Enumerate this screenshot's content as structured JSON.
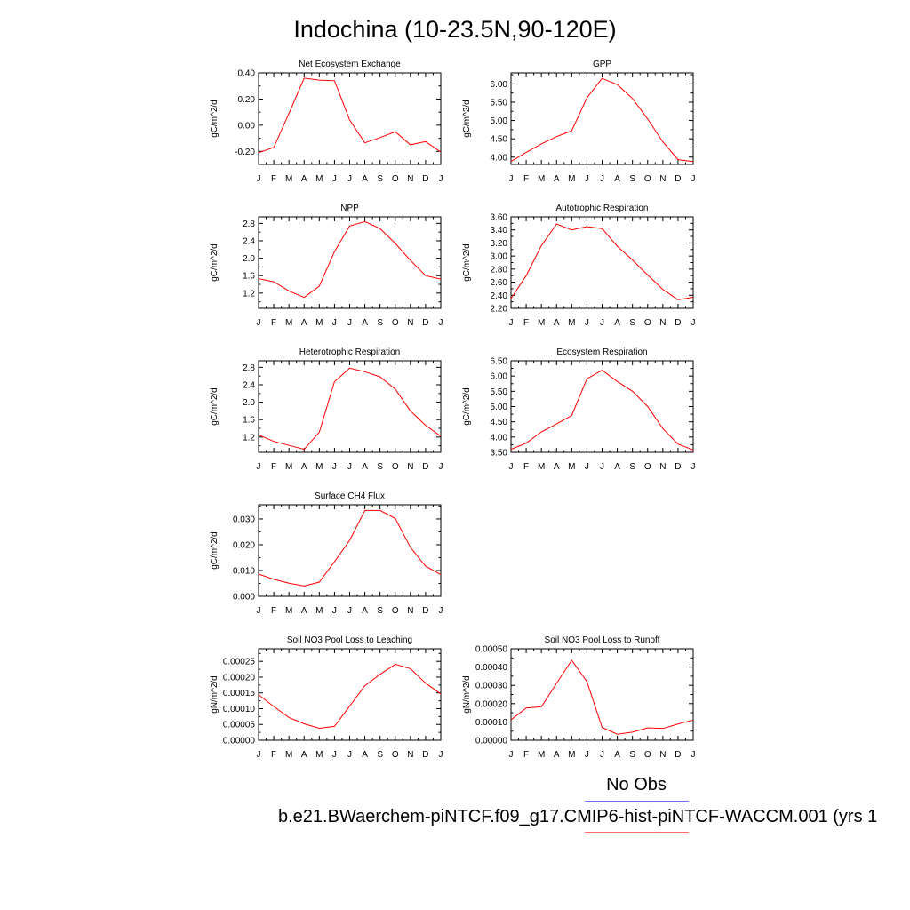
{
  "title": "Indochina (10-23.5N,90-120E)",
  "month_labels": [
    "J",
    "F",
    "M",
    "A",
    "M",
    "J",
    "J",
    "A",
    "S",
    "O",
    "N",
    "D",
    "J"
  ],
  "legend": {
    "obs_label": "No Obs",
    "obs_color": "#6a6aff",
    "case_label": "b.e21.BWaerchem-piNTCF.f09_g17.CMIP6-hist-piNTCF-WACCM.001 (yrs 1",
    "case_color": "#ff6a6a"
  },
  "line_color": "#ff0000",
  "chart_data": [
    {
      "type": "line",
      "title": "Net Ecosystem Exchange",
      "ylabel": "gC/m^2/d",
      "ylim": [
        -0.3,
        0.4
      ],
      "yticks": [
        -0.2,
        0.0,
        0.2,
        0.4
      ],
      "ytick_labels": [
        "-0.20",
        "0.00",
        "0.20",
        "0.40"
      ],
      "categories": [
        "J",
        "F",
        "M",
        "A",
        "M",
        "J",
        "J",
        "A",
        "S",
        "O",
        "N",
        "D",
        "J"
      ],
      "series": [
        {
          "values": [
            -0.21,
            -0.17,
            0.09,
            0.36,
            0.345,
            0.34,
            0.04,
            -0.135,
            -0.095,
            -0.05,
            -0.15,
            -0.125,
            -0.205
          ]
        }
      ]
    },
    {
      "type": "line",
      "title": "GPP",
      "ylabel": "gC/m^2/d",
      "ylim": [
        3.8,
        6.3
      ],
      "yticks": [
        4.0,
        4.5,
        5.0,
        5.5,
        6.0
      ],
      "ytick_labels": [
        "4.00",
        "4.50",
        "5.00",
        "5.50",
        "6.00"
      ],
      "categories": [
        "J",
        "F",
        "M",
        "A",
        "M",
        "J",
        "J",
        "A",
        "S",
        "O",
        "N",
        "D",
        "J"
      ],
      "series": [
        {
          "values": [
            3.88,
            4.13,
            4.36,
            4.56,
            4.72,
            5.62,
            6.15,
            5.98,
            5.6,
            5.04,
            4.42,
            3.93,
            3.88
          ]
        }
      ]
    },
    {
      "type": "line",
      "title": "NPP",
      "ylabel": "gC/m^2/d",
      "ylim": [
        0.85,
        2.95
      ],
      "yticks": [
        1.2,
        1.6,
        2.0,
        2.4,
        2.8
      ],
      "ytick_labels": [
        "1.2",
        "1.6",
        "2.0",
        "2.4",
        "2.8"
      ],
      "categories": [
        "J",
        "F",
        "M",
        "A",
        "M",
        "J",
        "J",
        "A",
        "S",
        "O",
        "N",
        "D",
        "J"
      ],
      "series": [
        {
          "values": [
            1.53,
            1.46,
            1.25,
            1.1,
            1.36,
            2.15,
            2.74,
            2.84,
            2.68,
            2.34,
            1.95,
            1.6,
            1.52
          ]
        }
      ]
    },
    {
      "type": "line",
      "title": "Autotrophic Respiration",
      "ylabel": "gC/m^2/d",
      "ylim": [
        2.2,
        3.6
      ],
      "yticks": [
        2.2,
        2.4,
        2.6,
        2.8,
        3.0,
        3.2,
        3.4,
        3.6
      ],
      "ytick_labels": [
        "2.20",
        "2.40",
        "2.60",
        "2.80",
        "3.00",
        "3.20",
        "3.40",
        "3.60"
      ],
      "categories": [
        "J",
        "F",
        "M",
        "A",
        "M",
        "J",
        "J",
        "A",
        "S",
        "O",
        "N",
        "D",
        "J"
      ],
      "series": [
        {
          "values": [
            2.35,
            2.7,
            3.16,
            3.49,
            3.4,
            3.45,
            3.42,
            3.15,
            2.94,
            2.71,
            2.49,
            2.33,
            2.37
          ]
        }
      ]
    },
    {
      "type": "line",
      "title": "Heterotrophic Respiration",
      "ylabel": "gC/m^2/d",
      "ylim": [
        0.85,
        2.95
      ],
      "yticks": [
        1.2,
        1.6,
        2.0,
        2.4,
        2.8
      ],
      "ytick_labels": [
        "1.2",
        "1.6",
        "2.0",
        "2.4",
        "2.8"
      ],
      "categories": [
        "J",
        "F",
        "M",
        "A",
        "M",
        "J",
        "J",
        "A",
        "S",
        "O",
        "N",
        "D",
        "J"
      ],
      "series": [
        {
          "values": [
            1.25,
            1.1,
            1.01,
            0.92,
            1.31,
            2.47,
            2.78,
            2.7,
            2.58,
            2.3,
            1.8,
            1.47,
            1.22
          ]
        }
      ]
    },
    {
      "type": "line",
      "title": "Ecosystem Respiration",
      "ylabel": "gC/m^2/d",
      "ylim": [
        3.5,
        6.5
      ],
      "yticks": [
        3.5,
        4.0,
        4.5,
        5.0,
        5.5,
        6.0,
        6.5
      ],
      "ytick_labels": [
        "3.50",
        "4.00",
        "4.50",
        "5.00",
        "5.50",
        "6.00",
        "6.50"
      ],
      "categories": [
        "J",
        "F",
        "M",
        "A",
        "M",
        "J",
        "J",
        "A",
        "S",
        "O",
        "N",
        "D",
        "J"
      ],
      "series": [
        {
          "values": [
            3.6,
            3.8,
            4.17,
            4.43,
            4.71,
            5.91,
            6.19,
            5.82,
            5.5,
            5.0,
            4.28,
            3.77,
            3.58
          ]
        }
      ]
    },
    {
      "type": "line",
      "title": "Surface CH4 Flux",
      "ylabel": "gC/m^2/d",
      "ylim": [
        0.0,
        0.0355
      ],
      "yticks": [
        0.0,
        0.01,
        0.02,
        0.03
      ],
      "ytick_labels": [
        "0.000",
        "0.010",
        "0.020",
        "0.030"
      ],
      "categories": [
        "J",
        "F",
        "M",
        "A",
        "M",
        "J",
        "J",
        "A",
        "S",
        "O",
        "N",
        "D",
        "J"
      ],
      "series": [
        {
          "values": [
            0.0086,
            0.0066,
            0.0051,
            0.004,
            0.0055,
            0.0134,
            0.0217,
            0.0333,
            0.0333,
            0.0302,
            0.019,
            0.0117,
            0.0084
          ]
        }
      ]
    },
    {
      "type": "line",
      "title": "Soil NO3 Pool Loss to Leaching",
      "ylabel": "gN/m^2/d",
      "ylim": [
        0.0,
        0.00029
      ],
      "yticks": [
        0.0,
        5e-05,
        0.0001,
        0.00015,
        0.0002,
        0.00025
      ],
      "ytick_labels": [
        "0.00000",
        "0.00005",
        "0.00010",
        "0.00015",
        "0.00020",
        "0.00025"
      ],
      "categories": [
        "J",
        "F",
        "M",
        "A",
        "M",
        "J",
        "J",
        "A",
        "S",
        "O",
        "N",
        "D",
        "J"
      ],
      "series": [
        {
          "values": [
            0.000144,
            0.000107,
            7.2e-05,
            5.2e-05,
            3.8e-05,
            4.4e-05,
            0.000108,
            0.000173,
            0.000209,
            0.000241,
            0.000227,
            0.000181,
            0.000147
          ]
        }
      ]
    },
    {
      "type": "line",
      "title": "Soil NO3 Pool Loss to Runoff",
      "ylabel": "gN/m^2/d",
      "ylim": [
        0.0,
        0.0005
      ],
      "yticks": [
        0.0,
        0.0001,
        0.0002,
        0.0003,
        0.0004,
        0.0005
      ],
      "ytick_labels": [
        "0.00000",
        "0.00010",
        "0.00020",
        "0.00030",
        "0.00040",
        "0.00050"
      ],
      "categories": [
        "J",
        "F",
        "M",
        "A",
        "M",
        "J",
        "J",
        "A",
        "S",
        "O",
        "N",
        "D",
        "J"
      ],
      "series": [
        {
          "values": [
            0.000111,
            0.000176,
            0.000183,
            0.000311,
            0.000437,
            0.000321,
            7e-05,
            3.3e-05,
            4.4e-05,
            6.8e-05,
            6.4e-05,
            8.9e-05,
            0.00011
          ]
        }
      ]
    }
  ]
}
